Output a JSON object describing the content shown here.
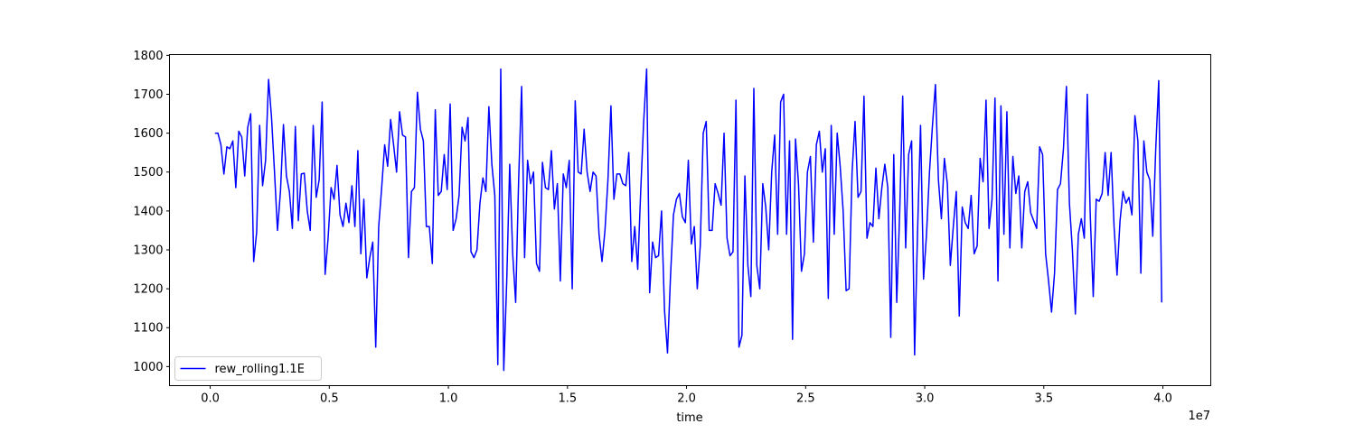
{
  "chart_data": {
    "type": "line",
    "xlabel": "time",
    "x_offset_label": "1e7",
    "xlim": [
      -1710000,
      42010000
    ],
    "ylim": [
      951,
      1802
    ],
    "xticks": [
      {
        "value": 0,
        "label": "0.0"
      },
      {
        "value": 5000000,
        "label": "0.5"
      },
      {
        "value": 10000000,
        "label": "1.0"
      },
      {
        "value": 15000000,
        "label": "1.5"
      },
      {
        "value": 20000000,
        "label": "2.0"
      },
      {
        "value": 25000000,
        "label": "2.5"
      },
      {
        "value": 30000000,
        "label": "3.0"
      },
      {
        "value": 35000000,
        "label": "3.5"
      },
      {
        "value": 40000000,
        "label": "4.0"
      }
    ],
    "yticks": [
      1000,
      1100,
      1200,
      1300,
      1400,
      1500,
      1600,
      1700,
      1800
    ],
    "grid": false,
    "legend": "lower left",
    "x": [
      200000,
      325000,
      450000,
      575000,
      700000,
      825000,
      950000,
      1075000,
      1200000,
      1325000,
      1450000,
      1575000,
      1700000,
      1825000,
      1950000,
      2075000,
      2200000,
      2325000,
      2450000,
      2575000,
      2700000,
      2825000,
      2950000,
      3075000,
      3200000,
      3325000,
      3450000,
      3575000,
      3700000,
      3825000,
      3950000,
      4075000,
      4200000,
      4325000,
      4450000,
      4575000,
      4700000,
      4825000,
      4950000,
      5075000,
      5200000,
      5325000,
      5450000,
      5575000,
      5700000,
      5825000,
      5950000,
      6075000,
      6200000,
      6325000,
      6450000,
      6575000,
      6700000,
      6825000,
      6950000,
      7075000,
      7200000,
      7325000,
      7450000,
      7575000,
      7700000,
      7825000,
      7950000,
      8075000,
      8200000,
      8325000,
      8450000,
      8575000,
      8700000,
      8825000,
      8950000,
      9075000,
      9200000,
      9325000,
      9450000,
      9575000,
      9700000,
      9825000,
      9950000,
      10075000,
      10200000,
      10325000,
      10450000,
      10575000,
      10700000,
      10825000,
      10950000,
      11075000,
      11200000,
      11325000,
      11450000,
      11575000,
      11700000,
      11825000,
      11950000,
      12075000,
      12200000,
      12325000,
      12450000,
      12575000,
      12700000,
      12825000,
      12950000,
      13075000,
      13200000,
      13325000,
      13450000,
      13575000,
      13700000,
      13825000,
      13950000,
      14075000,
      14200000,
      14325000,
      14450000,
      14575000,
      14700000,
      14825000,
      14950000,
      15075000,
      15200000,
      15325000,
      15450000,
      15575000,
      15700000,
      15825000,
      15950000,
      16075000,
      16200000,
      16325000,
      16450000,
      16575000,
      16700000,
      16825000,
      16950000,
      17075000,
      17200000,
      17325000,
      17450000,
      17575000,
      17700000,
      17825000,
      17950000,
      18075000,
      18200000,
      18325000,
      18450000,
      18575000,
      18700000,
      18825000,
      18950000,
      19075000,
      19200000,
      19325000,
      19450000,
      19575000,
      19700000,
      19825000,
      19950000,
      20075000,
      20200000,
      20325000,
      20450000,
      20575000,
      20700000,
      20825000,
      20950000,
      21075000,
      21200000,
      21325000,
      21450000,
      21575000,
      21700000,
      21825000,
      21950000,
      22075000,
      22200000,
      22325000,
      22450000,
      22575000,
      22700000,
      22825000,
      22950000,
      23075000,
      23200000,
      23325000,
      23450000,
      23575000,
      23700000,
      23825000,
      23950000,
      24075000,
      24200000,
      24325000,
      24450000,
      24575000,
      24700000,
      24825000,
      24950000,
      25075000,
      25200000,
      25325000,
      25450000,
      25575000,
      25700000,
      25825000,
      25950000,
      26075000,
      26200000,
      26325000,
      26450000,
      26575000,
      26700000,
      26825000,
      26950000,
      27075000,
      27200000,
      27325000,
      27450000,
      27575000,
      27700000,
      27825000,
      27950000,
      28075000,
      28200000,
      28325000,
      28450000,
      28575000,
      28700000,
      28825000,
      28950000,
      29075000,
      29200000,
      29325000,
      29450000,
      29575000,
      29700000,
      29825000,
      29950000,
      30075000,
      30200000,
      30325000,
      30450000,
      30575000,
      30700000,
      30825000,
      30950000,
      31075000,
      31200000,
      31325000,
      31450000,
      31575000,
      31700000,
      31825000,
      31950000,
      32075000,
      32200000,
      32325000,
      32450000,
      32575000,
      32700000,
      32825000,
      32950000,
      33075000,
      33200000,
      33325000,
      33450000,
      33575000,
      33700000,
      33825000,
      33950000,
      34075000,
      34200000,
      34325000,
      34450000,
      34575000,
      34700000,
      34825000,
      34950000,
      35075000,
      35200000,
      35325000,
      35450000,
      35575000,
      35700000,
      35825000,
      35950000,
      36075000,
      36200000,
      36325000,
      36450000,
      36575000,
      36700000,
      36825000,
      36950000,
      37075000,
      37200000,
      37325000,
      37450000,
      37575000,
      37700000,
      37825000,
      37950000,
      38075000,
      38200000,
      38325000,
      38450000,
      38575000,
      38700000,
      38825000,
      38950000,
      39075000,
      39200000,
      39325000,
      39450000,
      39575000,
      39700000,
      39825000,
      39950000
    ],
    "series": [
      {
        "name": "rew_rolling1.1E",
        "color": "#0000ff",
        "values": [
          1600,
          1600,
          1570,
          1495,
          1565,
          1560,
          1580,
          1460,
          1605,
          1590,
          1490,
          1615,
          1650,
          1270,
          1345,
          1620,
          1465,
          1530,
          1738,
          1640,
          1500,
          1350,
          1450,
          1622,
          1490,
          1450,
          1355,
          1617,
          1375,
          1495,
          1497,
          1400,
          1350,
          1620,
          1435,
          1480,
          1680,
          1237,
          1330,
          1460,
          1430,
          1517,
          1390,
          1360,
          1420,
          1370,
          1465,
          1360,
          1555,
          1290,
          1430,
          1228,
          1280,
          1320,
          1050,
          1360,
          1460,
          1570,
          1515,
          1635,
          1570,
          1500,
          1655,
          1595,
          1590,
          1280,
          1450,
          1460,
          1705,
          1610,
          1580,
          1360,
          1360,
          1265,
          1660,
          1440,
          1450,
          1545,
          1455,
          1675,
          1350,
          1380,
          1440,
          1615,
          1580,
          1640,
          1295,
          1280,
          1300,
          1420,
          1485,
          1450,
          1668,
          1520,
          1440,
          1005,
          1765,
          990,
          1220,
          1520,
          1290,
          1165,
          1480,
          1720,
          1280,
          1530,
          1470,
          1500,
          1265,
          1245,
          1525,
          1460,
          1455,
          1555,
          1405,
          1470,
          1220,
          1495,
          1460,
          1530,
          1200,
          1683,
          1500,
          1495,
          1610,
          1500,
          1450,
          1500,
          1490,
          1340,
          1270,
          1350,
          1480,
          1670,
          1430,
          1495,
          1495,
          1470,
          1465,
          1550,
          1270,
          1360,
          1250,
          1450,
          1630,
          1765,
          1190,
          1320,
          1280,
          1285,
          1400,
          1145,
          1035,
          1230,
          1390,
          1430,
          1445,
          1385,
          1370,
          1530,
          1315,
          1360,
          1200,
          1310,
          1600,
          1630,
          1350,
          1350,
          1470,
          1445,
          1415,
          1600,
          1330,
          1285,
          1295,
          1685,
          1050,
          1080,
          1490,
          1260,
          1180,
          1715,
          1260,
          1200,
          1470,
          1410,
          1300,
          1500,
          1595,
          1340,
          1680,
          1700,
          1340,
          1580,
          1070,
          1585,
          1470,
          1245,
          1290,
          1500,
          1540,
          1320,
          1570,
          1605,
          1500,
          1560,
          1175,
          1620,
          1340,
          1600,
          1515,
          1400,
          1195,
          1200,
          1500,
          1630,
          1435,
          1450,
          1695,
          1330,
          1370,
          1360,
          1510,
          1380,
          1460,
          1520,
          1460,
          1075,
          1545,
          1165,
          1400,
          1695,
          1305,
          1545,
          1580,
          1030,
          1350,
          1620,
          1225,
          1340,
          1500,
          1620,
          1725,
          1480,
          1380,
          1535,
          1470,
          1260,
          1360,
          1450,
          1130,
          1410,
          1370,
          1355,
          1440,
          1290,
          1310,
          1535,
          1475,
          1685,
          1355,
          1430,
          1690,
          1220,
          1670,
          1340,
          1655,
          1305,
          1540,
          1445,
          1490,
          1305,
          1450,
          1475,
          1395,
          1375,
          1355,
          1565,
          1545,
          1290,
          1220,
          1140,
          1240,
          1455,
          1470,
          1560,
          1720,
          1420,
          1300,
          1135,
          1340,
          1380,
          1330,
          1700,
          1390,
          1180,
          1430,
          1425,
          1445,
          1550,
          1440,
          1550,
          1360,
          1235,
          1375,
          1450,
          1420,
          1435,
          1390,
          1645,
          1580,
          1240,
          1580,
          1500,
          1480,
          1335,
          1560,
          1735,
          1165
        ]
      }
    ]
  }
}
